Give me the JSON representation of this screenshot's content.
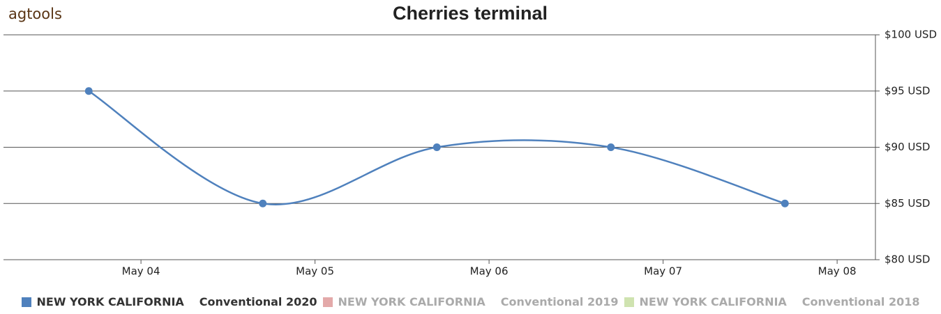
{
  "logo": "agtools",
  "chart_data": {
    "type": "line",
    "title": "Cherries terminal",
    "x": [
      3.7,
      4.7,
      5.7,
      6.7,
      7.7
    ],
    "xlim": [
      3.21,
      8.22
    ],
    "xticks": [
      {
        "value": 4,
        "label": "May 04"
      },
      {
        "value": 5,
        "label": "May 05"
      },
      {
        "value": 6,
        "label": "May 06"
      },
      {
        "value": 7,
        "label": "May 07"
      },
      {
        "value": 8,
        "label": "May 08"
      }
    ],
    "ylim": [
      80,
      100
    ],
    "yticks": [
      {
        "value": 80,
        "label": "$80 USD"
      },
      {
        "value": 85,
        "label": "$85 USD"
      },
      {
        "value": 90,
        "label": "$90 USD"
      },
      {
        "value": 95,
        "label": "$95 USD"
      },
      {
        "value": 100,
        "label": "$100 USD"
      }
    ],
    "grid": true,
    "series": [
      {
        "name": "NEW YORK CALIFORNIA",
        "subtitle": "Conventional 2020",
        "color": "#4f81bd",
        "visible": true,
        "values": [
          95,
          85,
          90,
          90,
          85
        ]
      },
      {
        "name": "NEW YORK CALIFORNIA",
        "subtitle": "Conventional 2019",
        "color": "#e3a9a9",
        "visible": false
      },
      {
        "name": "NEW YORK CALIFORNIA",
        "subtitle": "Conventional 2018",
        "color": "#cfe3b0",
        "visible": false
      }
    ]
  }
}
